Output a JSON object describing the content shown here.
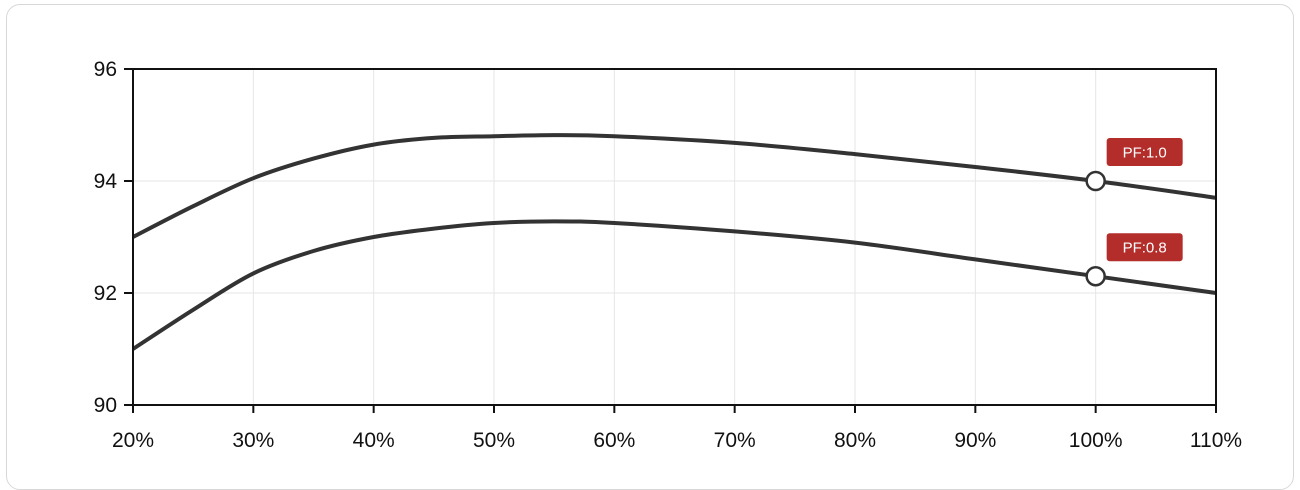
{
  "chart_data": {
    "type": "line",
    "title": "",
    "xlabel": "",
    "ylabel": "",
    "xlim": [
      20,
      110
    ],
    "ylim": [
      90,
      96
    ],
    "x_ticks": [
      "20%",
      "30%",
      "40%",
      "50%",
      "60%",
      "70%",
      "80%",
      "90%",
      "100%",
      "110%"
    ],
    "y_ticks": [
      "90",
      "92",
      "94",
      "96"
    ],
    "x_tick_values": [
      20,
      30,
      40,
      50,
      60,
      70,
      80,
      90,
      100,
      110
    ],
    "y_tick_values": [
      90,
      92,
      94,
      96
    ],
    "grid": true,
    "series": [
      {
        "label": "PF:1.0",
        "x": [
          20,
          25,
          30,
          35,
          40,
          45,
          50,
          55,
          60,
          70,
          80,
          90,
          100,
          110
        ],
        "y": [
          93.0,
          93.55,
          94.05,
          94.4,
          94.65,
          94.77,
          94.8,
          94.82,
          94.8,
          94.68,
          94.48,
          94.25,
          94.0,
          93.7
        ],
        "marker_x": 100,
        "marker_y": 94.0
      },
      {
        "label": "PF:0.8",
        "x": [
          20,
          25,
          30,
          35,
          40,
          45,
          50,
          55,
          60,
          70,
          80,
          90,
          100,
          110
        ],
        "y": [
          91.0,
          91.7,
          92.35,
          92.75,
          93.0,
          93.15,
          93.25,
          93.28,
          93.25,
          93.1,
          92.9,
          92.6,
          92.3,
          92.0
        ],
        "marker_x": 100,
        "marker_y": 92.3
      }
    ],
    "colors": {
      "line": "#333333",
      "badge": "#b32d2a",
      "axis": "#111111",
      "grid": "#e6e6e6"
    }
  }
}
